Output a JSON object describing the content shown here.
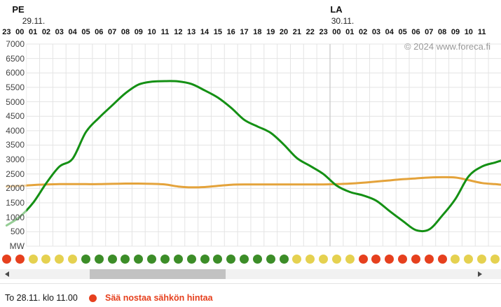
{
  "header": {
    "day1": {
      "abbr": "PE",
      "date": "29.11."
    },
    "day2": {
      "abbr": "LA",
      "date": "30.11."
    },
    "copyright": "© 2024 www.foreca.fi"
  },
  "chart_data": {
    "type": "line",
    "title": "",
    "xlabel": "",
    "ylabel": "MW",
    "ylim": [
      0,
      7000
    ],
    "ytick_step": 500,
    "yticks": [
      "7000",
      "6500",
      "6000",
      "5500",
      "5000",
      "4500",
      "4000",
      "3500",
      "3000",
      "2500",
      "2000",
      "1500",
      "1000",
      "500"
    ],
    "y_unit_label": "MW",
    "grid": true,
    "x_hour_labels": [
      "23",
      "00",
      "01",
      "02",
      "03",
      "04",
      "05",
      "06",
      "07",
      "08",
      "09",
      "10",
      "11",
      "12",
      "13",
      "14",
      "15",
      "16",
      "17",
      "18",
      "19",
      "20",
      "21",
      "22",
      "23",
      "00",
      "01",
      "02",
      "03",
      "04",
      "05",
      "06",
      "07",
      "08",
      "09",
      "10",
      "11"
    ],
    "day_boundary_index": 25,
    "faded_history_region_end_index": 1.5,
    "series": [
      {
        "name": "orange-line",
        "color": "#e4a33b",
        "values": [
          2070,
          2090,
          2120,
          2140,
          2150,
          2150,
          2150,
          2150,
          2160,
          2170,
          2170,
          2160,
          2140,
          2070,
          2040,
          2050,
          2090,
          2130,
          2140,
          2140,
          2140,
          2140,
          2140,
          2140,
          2140,
          2150,
          2170,
          2200,
          2240,
          2280,
          2320,
          2350,
          2380,
          2390,
          2380,
          2290,
          2190,
          2150
        ]
      },
      {
        "name": "green-line",
        "color": "#149014",
        "values": [
          720,
          1020,
          1500,
          2180,
          2760,
          3030,
          3950,
          4450,
          4880,
          5300,
          5600,
          5700,
          5720,
          5710,
          5620,
          5400,
          5150,
          4800,
          4380,
          4150,
          3930,
          3520,
          3050,
          2780,
          2500,
          2100,
          1880,
          1760,
          1580,
          1220,
          880,
          560,
          580,
          1060,
          1640,
          2420,
          2760,
          2900
        ]
      }
    ]
  },
  "indicator_dots": {
    "colors_hex": {
      "red": "#e6401e",
      "yellow": "#e5d150",
      "green": "#3c8d28"
    },
    "sequence": [
      "red",
      "red",
      "yellow",
      "yellow",
      "yellow",
      "yellow",
      "green",
      "green",
      "green",
      "green",
      "green",
      "green",
      "green",
      "green",
      "green",
      "green",
      "green",
      "green",
      "green",
      "green",
      "green",
      "green",
      "yellow",
      "yellow",
      "yellow",
      "yellow",
      "yellow",
      "red",
      "red",
      "red",
      "red",
      "red",
      "red",
      "red",
      "yellow",
      "yellow",
      "yellow",
      "yellow"
    ]
  },
  "scrollbar": {
    "left_arrow_icon": "scroll-left",
    "right_arrow_icon": "scroll-right"
  },
  "footer": {
    "timestamp": "To 28.11. klo 11.00",
    "legend_dot_color": "#e6401e",
    "legend_text": "Sää nostaa sähkön hintaa",
    "legend_text_color": "#e6401e"
  }
}
